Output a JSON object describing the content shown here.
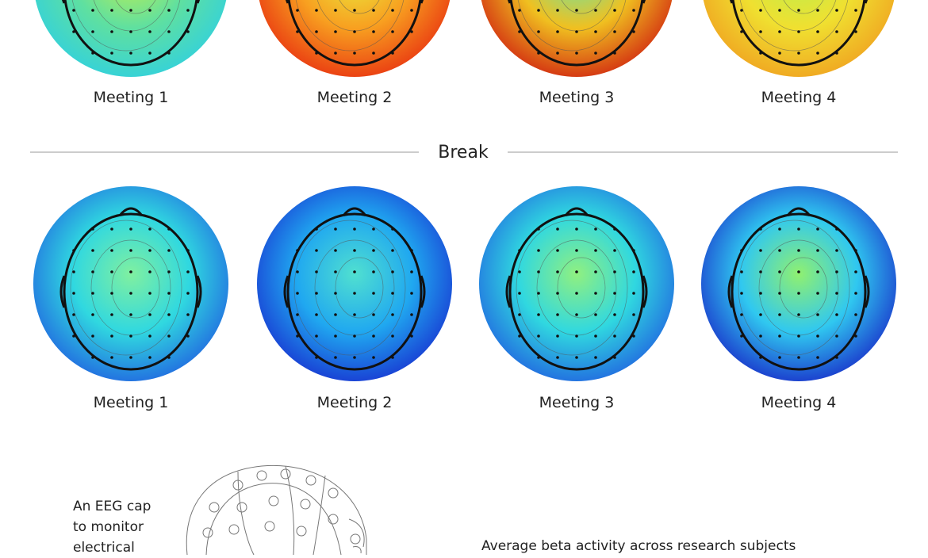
{
  "top_row": {
    "labels": [
      "Meeting 1",
      "Meeting 2",
      "Meeting 3",
      "Meeting 4"
    ]
  },
  "break_label": "Break",
  "bottom_row": {
    "labels": [
      "Meeting 1",
      "Meeting 2",
      "Meeting 3",
      "Meeting 4"
    ]
  },
  "cap_note": [
    "An EEG cap",
    "to monitor",
    "electrical"
  ],
  "caption": "Average beta activity across research subjects"
}
